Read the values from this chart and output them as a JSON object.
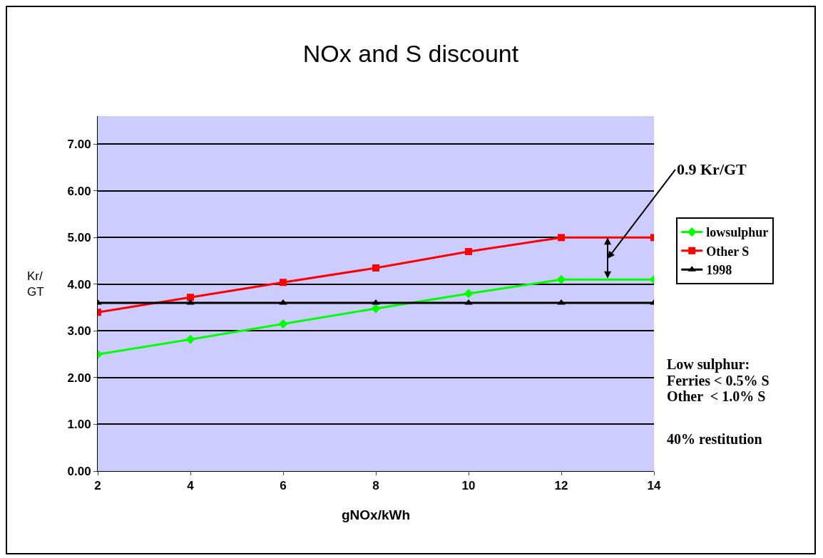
{
  "chart_data": {
    "type": "line",
    "title": "NOx and S discount",
    "xlabel": "gNOx/kWh",
    "ylabel": "Kr/\nGT",
    "x": [
      2,
      4,
      6,
      8,
      10,
      12,
      14
    ],
    "series": [
      {
        "name": "lowsulphur",
        "color": "#00ff00",
        "marker": "diamond",
        "values": [
          2.5,
          2.82,
          3.15,
          3.48,
          3.8,
          4.1,
          4.1
        ]
      },
      {
        "name": "Other S",
        "color": "#ff0000",
        "marker": "square",
        "values": [
          3.4,
          3.72,
          4.04,
          4.35,
          4.7,
          5.0,
          5.0
        ]
      },
      {
        "name": "1998",
        "color": "#000000",
        "marker": "triangle",
        "values": [
          3.6,
          3.6,
          3.6,
          3.6,
          3.6,
          3.6,
          3.6
        ]
      }
    ],
    "xlim": [
      2,
      14
    ],
    "xticks": [
      2,
      4,
      6,
      8,
      10,
      12,
      14
    ],
    "ylim": [
      0,
      7.6
    ],
    "yticks": [
      {
        "value": 0,
        "label": "0.00"
      },
      {
        "value": 1,
        "label": "1.00"
      },
      {
        "value": 2,
        "label": "2.00"
      },
      {
        "value": 3,
        "label": "3.00"
      },
      {
        "value": 4,
        "label": "4.00"
      },
      {
        "value": 5,
        "label": "5.00"
      },
      {
        "value": 6,
        "label": "6.00"
      },
      {
        "value": 7,
        "label": "7.00"
      }
    ],
    "grid": "y",
    "legend": "right",
    "line_style": "solid",
    "annotations": [
      "0.9 Kr/GT",
      "Low sulphur:",
      "Ferries < 0.5% S",
      "Other  < 1.0% S",
      "40% restitution"
    ]
  }
}
